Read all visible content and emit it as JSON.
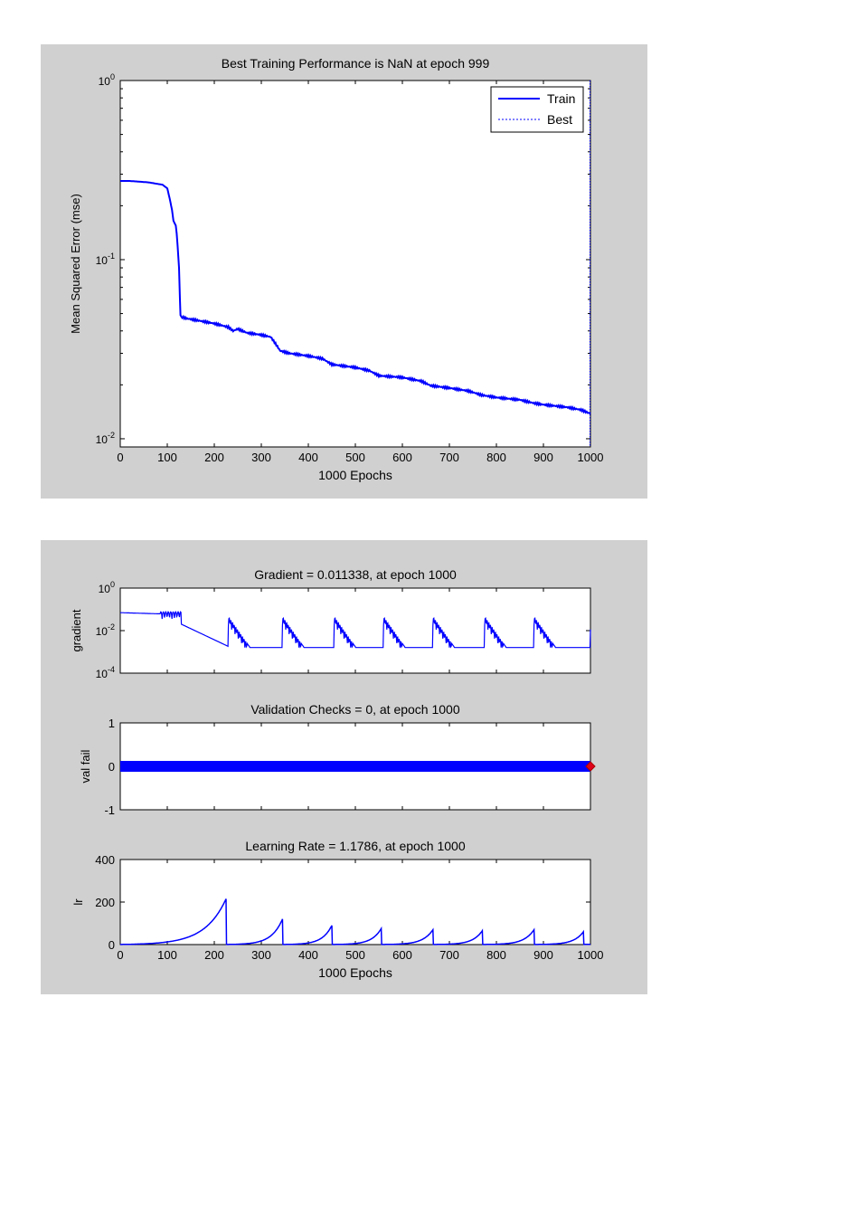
{
  "chart_data": [
    {
      "type": "line",
      "title": "Best Training Performance is NaN at epoch 999",
      "xlabel": "1000 Epochs",
      "ylabel": "Mean Squared Error  (mse)",
      "xlim": [
        0,
        1000
      ],
      "ylim": [
        0.009,
        1
      ],
      "yscale": "log",
      "xticks": [
        0,
        100,
        200,
        300,
        400,
        500,
        600,
        700,
        800,
        900,
        1000
      ],
      "yticks": [
        {
          "base": "10",
          "exp": "0",
          "value": 1
        },
        {
          "base": "10",
          "exp": "-1",
          "value": 0.1
        },
        {
          "base": "10",
          "exp": "-2",
          "value": 0.01
        }
      ],
      "legend": {
        "position": "top-right",
        "entries": [
          {
            "label": "Train",
            "style": "solid"
          },
          {
            "label": "Best",
            "style": "dotted"
          }
        ]
      },
      "series": [
        {
          "name": "Train",
          "color": "#0000ff",
          "x": [
            0,
            20,
            60,
            90,
            100,
            105,
            110,
            113,
            118,
            120,
            122,
            125,
            127,
            128,
            130,
            140,
            160,
            200,
            230,
            240,
            250,
            260,
            270,
            300,
            320,
            330,
            340,
            360,
            400,
            430,
            450,
            500,
            530,
            550,
            600,
            640,
            660,
            700,
            740,
            770,
            800,
            850,
            880,
            900,
            950,
            980,
            1000
          ],
          "y": [
            0.275,
            0.275,
            0.27,
            0.262,
            0.25,
            0.22,
            0.19,
            0.165,
            0.155,
            0.14,
            0.12,
            0.09,
            0.06,
            0.049,
            0.048,
            0.047,
            0.046,
            0.044,
            0.042,
            0.04,
            0.041,
            0.04,
            0.039,
            0.038,
            0.037,
            0.034,
            0.031,
            0.03,
            0.029,
            0.028,
            0.026,
            0.025,
            0.024,
            0.0225,
            0.022,
            0.021,
            0.0198,
            0.0192,
            0.0185,
            0.0175,
            0.017,
            0.0165,
            0.0158,
            0.0155,
            0.015,
            0.0145,
            0.0138
          ]
        },
        {
          "name": "Best",
          "color": "#0000ff",
          "x": [
            999,
            999
          ],
          "y": [
            0.009,
            1
          ]
        }
      ]
    },
    {
      "type": "line",
      "title": "Gradient = 0.011338, at epoch 1000",
      "ylabel": "gradient",
      "xlim": [
        0,
        1000
      ],
      "ylim": [
        0.0001,
        1
      ],
      "yscale": "log",
      "yticks": [
        {
          "base": "10",
          "exp": "0",
          "value": 1
        },
        {
          "base": "10",
          "exp": "-2",
          "value": 0.01
        },
        {
          "base": "10",
          "exp": "-4",
          "value": 0.0001
        }
      ],
      "series": [
        {
          "name": "gradient",
          "color": "#0000ff",
          "cycle_starts": [
            0,
            230,
            345,
            455,
            560,
            665,
            775,
            880
          ],
          "peak": 0.07,
          "floor": 0.0016,
          "final": 0.011338
        }
      ]
    },
    {
      "type": "scatter",
      "title": "Validation Checks = 0, at epoch 1000",
      "ylabel": "val fail",
      "xlim": [
        0,
        1000
      ],
      "ylim": [
        -1,
        1
      ],
      "yticks": [
        1,
        0,
        -1
      ],
      "series": [
        {
          "name": "val fail",
          "color": "#0000ff",
          "x_range": [
            0,
            1000
          ],
          "value": 0
        }
      ],
      "best_marker": {
        "x": 1000,
        "y": 0,
        "color": "#e0001a"
      }
    },
    {
      "type": "line",
      "title": "Learning Rate = 1.1786, at epoch 1000",
      "xlabel": "1000 Epochs",
      "ylabel": "lr",
      "xlim": [
        0,
        1000
      ],
      "ylim": [
        0,
        400
      ],
      "yticks": [
        400,
        200,
        0
      ],
      "xticks": [
        0,
        100,
        200,
        300,
        400,
        500,
        600,
        700,
        800,
        900,
        1000
      ],
      "series": [
        {
          "name": "lr",
          "color": "#0000ff",
          "cycles": [
            [
              0,
              225,
              215
            ],
            [
              228,
              345,
              120
            ],
            [
              348,
              450,
              90
            ],
            [
              453,
              555,
              75
            ],
            [
              558,
              665,
              70
            ],
            [
              668,
              770,
              65
            ],
            [
              773,
              880,
              70
            ],
            [
              883,
              985,
              60
            ]
          ],
          "final": 1.1786
        }
      ]
    }
  ]
}
